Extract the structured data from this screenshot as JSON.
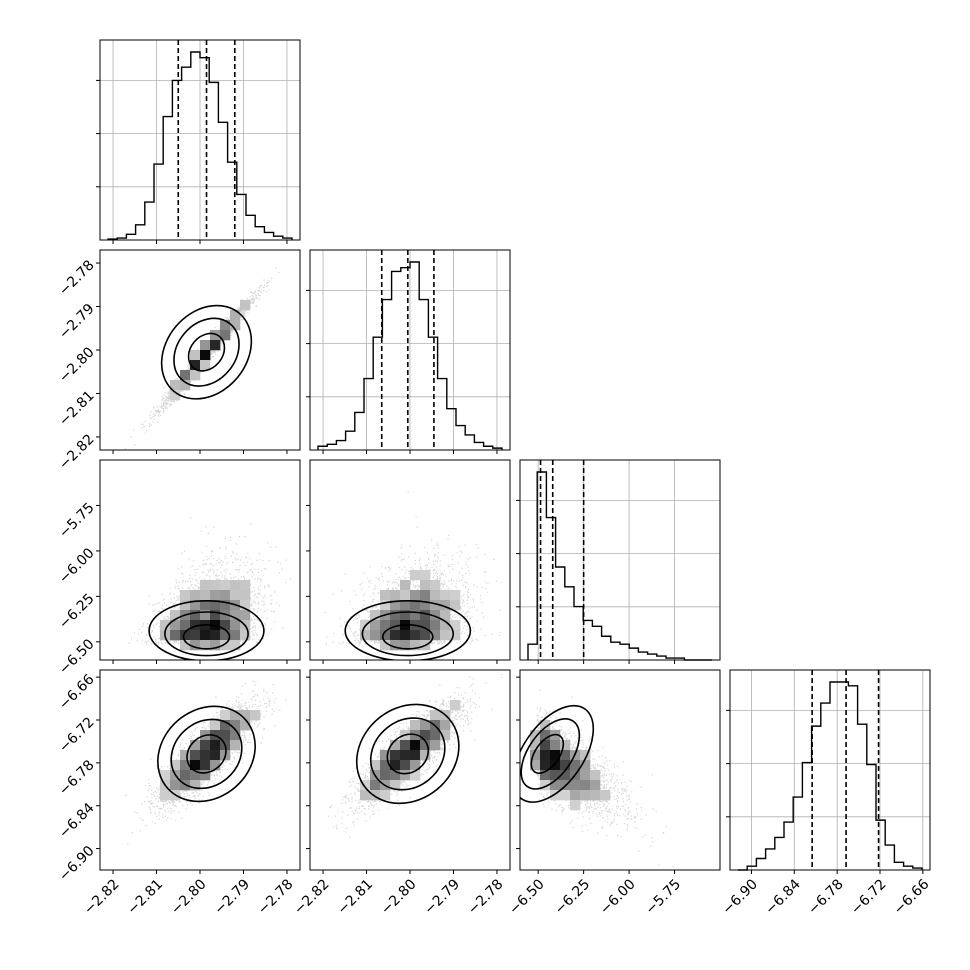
{
  "chart_data": {
    "type": "corner",
    "grid": true,
    "parameters": [
      {
        "range": [
          -2.823,
          -2.777
        ],
        "ticks": [
          -2.82,
          -2.81,
          -2.8,
          -2.79,
          -2.78
        ],
        "tick_labels": [
          "−2.82",
          "−2.81",
          "−2.80",
          "−2.79",
          "−2.78"
        ],
        "quantiles": [
          -2.805,
          -2.7985,
          -2.792
        ],
        "histogram": [
          0.005,
          0.01,
          0.03,
          0.08,
          0.2,
          0.4,
          0.65,
          0.84,
          0.91,
          0.99,
          0.96,
          0.83,
          0.62,
          0.41,
          0.24,
          0.13,
          0.07,
          0.04,
          0.02,
          0.01
        ]
      },
      {
        "range": [
          -2.823,
          -2.777
        ],
        "ticks": [
          -2.82,
          -2.81,
          -2.8,
          -2.79,
          -2.78
        ],
        "tick_labels": [
          "−2.82",
          "−2.81",
          "−2.80",
          "−2.79",
          "−2.78"
        ],
        "quantiles": [
          -2.8065,
          -2.8005,
          -2.7945
        ],
        "histogram": [
          0.02,
          0.03,
          0.05,
          0.1,
          0.2,
          0.38,
          0.6,
          0.8,
          0.95,
          0.97,
          1.0,
          0.8,
          0.6,
          0.38,
          0.22,
          0.13,
          0.08,
          0.04,
          0.02,
          0.01
        ]
      },
      {
        "range": [
          -6.6,
          -5.5
        ],
        "ticks": [
          -6.5,
          -6.25,
          -6.0,
          -5.75
        ],
        "tick_labels": [
          "−6.50",
          "−6.25",
          "−6.00",
          "−5.75"
        ],
        "quantiles": [
          -6.487,
          -6.42,
          -6.25
        ],
        "histogram": [
          0.08,
          0.95,
          0.72,
          0.47,
          0.37,
          0.27,
          0.2,
          0.17,
          0.12,
          0.09,
          0.08,
          0.06,
          0.04,
          0.03,
          0.02,
          0.01,
          0.01,
          0.0,
          0.0,
          0.0
        ]
      },
      {
        "range": [
          -6.93,
          -6.65
        ],
        "ticks": [
          -6.9,
          -6.84,
          -6.78,
          -6.72,
          -6.66
        ],
        "tick_labels": [
          "−6.90",
          "−6.84",
          "−6.78",
          "−6.72",
          "−6.66"
        ],
        "quantiles": [
          -6.815,
          -6.7675,
          -6.722
        ],
        "histogram": [
          0.0,
          0.02,
          0.06,
          0.11,
          0.17,
          0.25,
          0.38,
          0.56,
          0.75,
          0.87,
          0.98,
          0.98,
          0.96,
          0.76,
          0.55,
          0.26,
          0.13,
          0.04,
          0.02,
          0.01
        ]
      }
    ],
    "pairs": [
      {
        "x": 0,
        "y": 1,
        "mean": [
          -2.7985,
          -2.8005
        ],
        "sd": [
          0.005,
          0.006
        ],
        "rho": 0.985,
        "skew": 0
      },
      {
        "x": 0,
        "y": 2,
        "mean": [
          -2.7985,
          -6.42
        ],
        "sd": [
          0.0055,
          0.15
        ],
        "rho": 0.35,
        "skew": 1
      },
      {
        "x": 1,
        "y": 2,
        "mean": [
          -2.8005,
          -6.42
        ],
        "sd": [
          0.006,
          0.15
        ],
        "rho": 0.35,
        "skew": 1
      },
      {
        "x": 0,
        "y": 3,
        "mean": [
          -2.7985,
          -6.7675
        ],
        "sd": [
          0.0055,
          0.035
        ],
        "rho": 0.83,
        "skew": 0
      },
      {
        "x": 1,
        "y": 3,
        "mean": [
          -2.8005,
          -6.7675
        ],
        "sd": [
          0.006,
          0.035
        ],
        "rho": 0.85,
        "skew": 0
      },
      {
        "x": 2,
        "y": 3,
        "mean": [
          -6.42,
          -6.7675
        ],
        "sd": [
          0.15,
          0.035
        ],
        "rho": -0.72,
        "skew": 2
      }
    ]
  }
}
